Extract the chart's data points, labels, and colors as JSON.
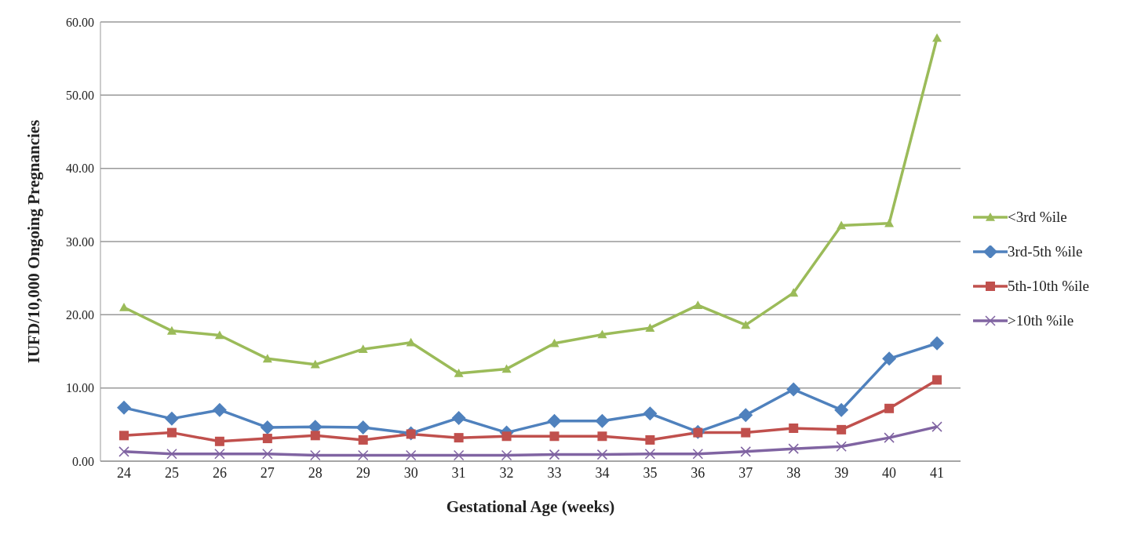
{
  "chart_data": {
    "type": "line",
    "xlabel": "Gestational Age (weeks)",
    "ylabel": "IUFD/10,000 Ongoing Pregnancies",
    "categories": [
      "24",
      "25",
      "26",
      "27",
      "28",
      "29",
      "30",
      "31",
      "32",
      "33",
      "34",
      "35",
      "36",
      "37",
      "38",
      "39",
      "40",
      "41"
    ],
    "series": [
      {
        "name": "<3rd %ile",
        "color": "#9bbb59",
        "marker": "triangle",
        "values": [
          21,
          17.8,
          17.2,
          14,
          13.2,
          15.3,
          16.2,
          12,
          12.6,
          16.1,
          17.3,
          18.2,
          21.3,
          18.6,
          23,
          32.2,
          32.5,
          57.8
        ]
      },
      {
        "name": "3rd-5th %ile",
        "color": "#4f81bd",
        "marker": "diamond",
        "values": [
          7.3,
          5.8,
          7,
          4.6,
          4.7,
          4.6,
          3.8,
          5.9,
          3.9,
          5.5,
          5.5,
          6.5,
          4,
          6.3,
          9.8,
          7,
          14,
          16.1
        ]
      },
      {
        "name": "5th-10th %ile",
        "color": "#c0504d",
        "marker": "square",
        "values": [
          3.5,
          3.9,
          2.7,
          3.1,
          3.5,
          2.9,
          3.7,
          3.2,
          3.4,
          3.4,
          3.4,
          2.9,
          3.9,
          3.9,
          4.5,
          4.3,
          7.2,
          11.1
        ]
      },
      {
        "name": ">10th %ile",
        "color": "#8064a2",
        "marker": "cross",
        "values": [
          1.3,
          1,
          1,
          1,
          0.8,
          0.8,
          0.8,
          0.8,
          0.8,
          0.9,
          0.9,
          1,
          1,
          1.3,
          1.7,
          2,
          3.2,
          4.7
        ]
      }
    ],
    "ylim": [
      0,
      60
    ],
    "yticks": [
      {
        "value": 0,
        "label": "0.00"
      },
      {
        "value": 10,
        "label": "10.00"
      },
      {
        "value": 20,
        "label": "20.00"
      },
      {
        "value": 30,
        "label": "30.00"
      },
      {
        "value": 40,
        "label": "40.00"
      },
      {
        "value": 50,
        "label": "50.00"
      },
      {
        "value": 60,
        "label": "60.00"
      }
    ],
    "grid": "y",
    "legend": "right"
  }
}
